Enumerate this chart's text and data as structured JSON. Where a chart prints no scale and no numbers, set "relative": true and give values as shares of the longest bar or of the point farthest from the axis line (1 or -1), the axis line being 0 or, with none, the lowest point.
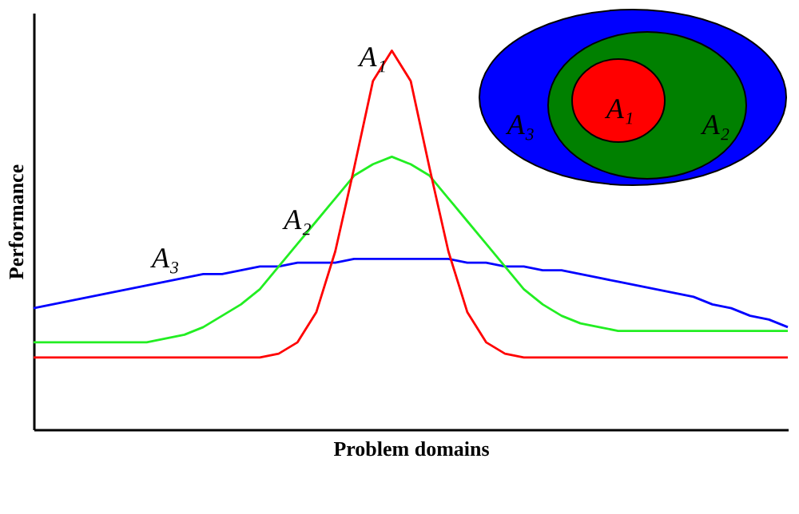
{
  "chart_data": {
    "type": "line",
    "relative": true,
    "xlabel": "Problem domains",
    "ylabel": "Performance",
    "legend": false,
    "grid": false,
    "categories": [
      null,
      null,
      null,
      null,
      null,
      null,
      null,
      null,
      null,
      null,
      null,
      null,
      null,
      null,
      null,
      null,
      null,
      null,
      null,
      null,
      null,
      null,
      null,
      null,
      null,
      null,
      null,
      null,
      null,
      null,
      null,
      null,
      null,
      null,
      null,
      null,
      null,
      null,
      null,
      null,
      null
    ],
    "series": [
      {
        "name": "A₃",
        "color": "#0000ff",
        "values": [
          0.32,
          0.33,
          0.34,
          0.35,
          0.36,
          0.37,
          0.38,
          0.39,
          0.4,
          0.41,
          0.41,
          0.42,
          0.43,
          0.43,
          0.44,
          0.44,
          0.44,
          0.45,
          0.45,
          0.45,
          0.45,
          0.45,
          0.45,
          0.44,
          0.44,
          0.43,
          0.43,
          0.42,
          0.42,
          0.41,
          0.4,
          0.39,
          0.38,
          0.37,
          0.36,
          0.35,
          0.33,
          0.32,
          0.3,
          0.29,
          0.27
        ]
      },
      {
        "name": "A₂",
        "color": "#22ee22",
        "values": [
          0.23,
          0.23,
          0.23,
          0.23,
          0.23,
          0.23,
          0.23,
          0.24,
          0.25,
          0.27,
          0.3,
          0.33,
          0.37,
          0.43,
          0.49,
          0.55,
          0.61,
          0.67,
          0.7,
          0.72,
          0.7,
          0.67,
          0.61,
          0.55,
          0.49,
          0.43,
          0.37,
          0.33,
          0.3,
          0.28,
          0.27,
          0.26,
          0.26,
          0.26,
          0.26,
          0.26,
          0.26,
          0.26,
          0.26,
          0.26,
          0.26
        ]
      },
      {
        "name": "A₁",
        "color": "#ff0000",
        "values": [
          0.19,
          0.19,
          0.19,
          0.19,
          0.19,
          0.19,
          0.19,
          0.19,
          0.19,
          0.19,
          0.19,
          0.19,
          0.19,
          0.2,
          0.23,
          0.31,
          0.47,
          0.69,
          0.92,
          1,
          0.92,
          0.69,
          0.47,
          0.31,
          0.23,
          0.2,
          0.19,
          0.19,
          0.19,
          0.19,
          0.19,
          0.19,
          0.19,
          0.19,
          0.19,
          0.19,
          0.19,
          0.19,
          0.19,
          0.19,
          0.19
        ]
      }
    ],
    "annotations": [
      "A₃",
      "A₁",
      "A₂"
    ]
  }
}
